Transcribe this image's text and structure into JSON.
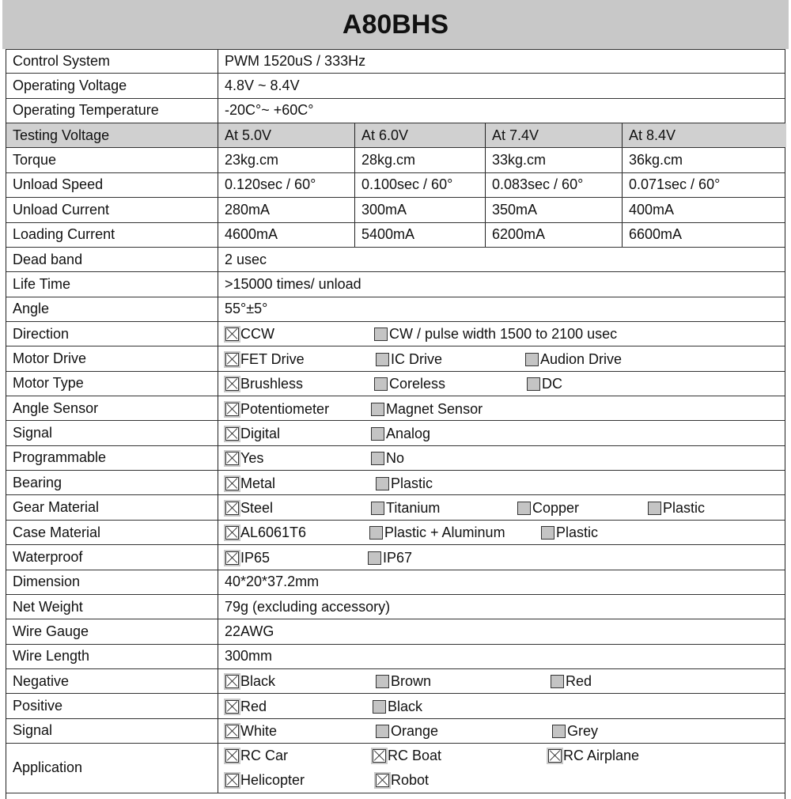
{
  "title": "A80BHS",
  "rows": [
    {
      "label": "Control System",
      "value": "PWM 1520uS / 333Hz"
    },
    {
      "label": "Operating Voltage",
      "value": "4.8V ~ 8.4V"
    },
    {
      "label": "Operating Temperature",
      "value": "-20C°~ +60C°"
    },
    {
      "label": "Testing Voltage",
      "cells": [
        "At 5.0V",
        "At 6.0V",
        "At 7.4V",
        "At 8.4V"
      ],
      "header": true
    },
    {
      "label": "Torque",
      "cells": [
        "23kg.cm",
        "28kg.cm",
        "33kg.cm",
        "36kg.cm"
      ]
    },
    {
      "label": "Unload Speed",
      "cells": [
        "0.120sec / 60°",
        "0.100sec / 60°",
        "0.083sec / 60°",
        "0.071sec / 60°"
      ]
    },
    {
      "label": "Unload Current",
      "cells": [
        "280mA",
        "300mA",
        "350mA",
        "400mA"
      ]
    },
    {
      "label": "Loading Current",
      "cells": [
        "4600mA",
        "5400mA",
        "6200mA",
        "6600mA"
      ]
    },
    {
      "label": "Dead band",
      "value": "2 usec"
    },
    {
      "label": "Life Time",
      "value": ">15000 times/ unload"
    },
    {
      "label": "Angle",
      "value": "55°±5°"
    },
    {
      "label": "Direction",
      "options": [
        {
          "text": "CCW",
          "checked": true
        },
        {
          "text": "CW / pulse width 1500 to 2100 usec",
          "checked": false
        }
      ]
    },
    {
      "label": "Motor Drive",
      "options": [
        {
          "text": "FET Drive",
          "checked": true
        },
        {
          "text": "IC Drive",
          "checked": false
        },
        {
          "text": "Audion Drive",
          "checked": false
        }
      ]
    },
    {
      "label": "Motor Type",
      "options": [
        {
          "text": "Brushless",
          "checked": true
        },
        {
          "text": "Coreless",
          "checked": false
        },
        {
          "text": "DC",
          "checked": false
        }
      ]
    },
    {
      "label": "Angle Sensor",
      "options": [
        {
          "text": "Potentiometer",
          "checked": true
        },
        {
          "text": "Magnet Sensor",
          "checked": false
        }
      ]
    },
    {
      "label": "Signal",
      "options": [
        {
          "text": "Digital",
          "checked": true
        },
        {
          "text": "Analog",
          "checked": false
        }
      ]
    },
    {
      "label": "Programmable",
      "options": [
        {
          "text": "Yes",
          "checked": true
        },
        {
          "text": "No",
          "checked": false
        }
      ]
    },
    {
      "label": "Bearing",
      "options": [
        {
          "text": "Metal",
          "checked": true
        },
        {
          "text": "Plastic",
          "checked": false
        }
      ]
    },
    {
      "label": "Gear Material",
      "options": [
        {
          "text": "Steel",
          "checked": true
        },
        {
          "text": "Titanium",
          "checked": false
        },
        {
          "text": "Copper",
          "checked": false
        },
        {
          "text": "Plastic",
          "checked": false
        }
      ]
    },
    {
      "label": "Case Material",
      "options": [
        {
          "text": "AL6061T6",
          "checked": true
        },
        {
          "text": "Plastic + Aluminum",
          "checked": false
        },
        {
          "text": "Plastic",
          "checked": false
        }
      ]
    },
    {
      "label": "Waterproof",
      "options": [
        {
          "text": "IP65",
          "checked": true
        },
        {
          "text": "IP67",
          "checked": false
        }
      ]
    },
    {
      "label": "Dimension",
      "value": "40*20*37.2mm"
    },
    {
      "label": "Net Weight",
      "value": "79g (excluding accessory)"
    },
    {
      "label": "Wire Gauge",
      "value": "22AWG"
    },
    {
      "label": "Wire Length",
      "value": "300mm"
    },
    {
      "label": "Negative",
      "options": [
        {
          "text": "Black",
          "checked": true
        },
        {
          "text": "Brown",
          "checked": false
        },
        {
          "text": "Red",
          "checked": false
        }
      ]
    },
    {
      "label": "Positive",
      "options": [
        {
          "text": "Red",
          "checked": true
        },
        {
          "text": "Black",
          "checked": false
        }
      ]
    },
    {
      "label": "Signal",
      "options": [
        {
          "text": "White",
          "checked": true
        },
        {
          "text": "Orange",
          "checked": false
        },
        {
          "text": "Grey",
          "checked": false
        }
      ]
    },
    {
      "label": "Application",
      "options": [
        {
          "text": "RC Car",
          "checked": true
        },
        {
          "text": "RC Boat",
          "checked": true
        },
        {
          "text": "RC Airplane",
          "checked": true
        },
        {
          "text": "Helicopter",
          "checked": true
        },
        {
          "text": "Robot",
          "checked": true
        }
      ]
    }
  ]
}
